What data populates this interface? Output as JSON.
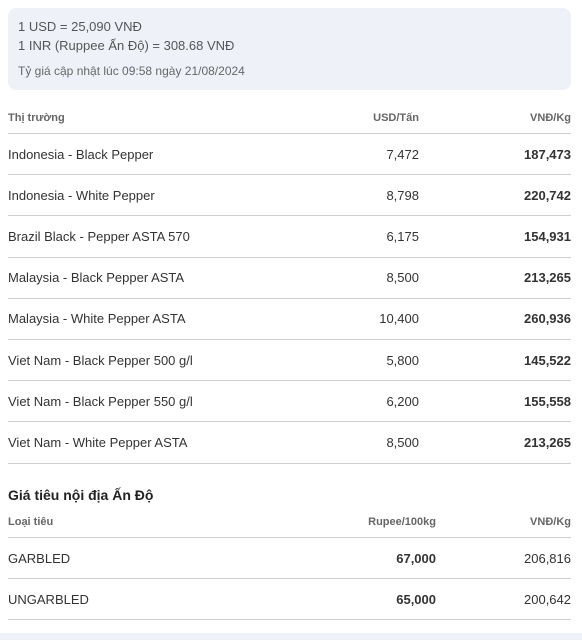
{
  "exchange": {
    "usd_line": "1 USD = 25,090 VNĐ",
    "inr_line": "1 INR (Ruppee Ấn Độ) = 308.68 VNĐ",
    "updated": "Tỷ giá cập nhật lúc 09:58 ngày 21/08/2024"
  },
  "world_table": {
    "headers": {
      "market": "Thị trường",
      "usd": "USD/Tấn",
      "vnd": "VNĐ/Kg"
    },
    "rows": [
      {
        "market": "Indonesia - Black Pepper",
        "usd": "7,472",
        "vnd": "187,473"
      },
      {
        "market": "Indonesia - White Pepper",
        "usd": "8,798",
        "vnd": "220,742"
      },
      {
        "market": "Brazil Black - Pepper ASTA 570",
        "usd": "6,175",
        "vnd": "154,931"
      },
      {
        "market": "Malaysia - Black Pepper ASTA",
        "usd": "8,500",
        "vnd": "213,265"
      },
      {
        "market": "Malaysia - White Pepper ASTA",
        "usd": "10,400",
        "vnd": "260,936"
      },
      {
        "market": "Viet Nam - Black Pepper 500 g/l",
        "usd": "5,800",
        "vnd": "145,522"
      },
      {
        "market": "Viet Nam - Black Pepper 550 g/l",
        "usd": "6,200",
        "vnd": "155,558"
      },
      {
        "market": "Viet Nam - White Pepper ASTA",
        "usd": "8,500",
        "vnd": "213,265"
      }
    ]
  },
  "india_section": {
    "title": "Giá tiêu nội địa Ấn Độ",
    "headers": {
      "type": "Loại tiêu",
      "rupee": "Rupee/100kg",
      "vnd": "VNĐ/Kg"
    },
    "rows": [
      {
        "type": "GARBLED",
        "rupee": "67,000",
        "vnd": "206,816"
      },
      {
        "type": "UNGARBLED",
        "rupee": "65,000",
        "vnd": "200,642"
      }
    ]
  }
}
